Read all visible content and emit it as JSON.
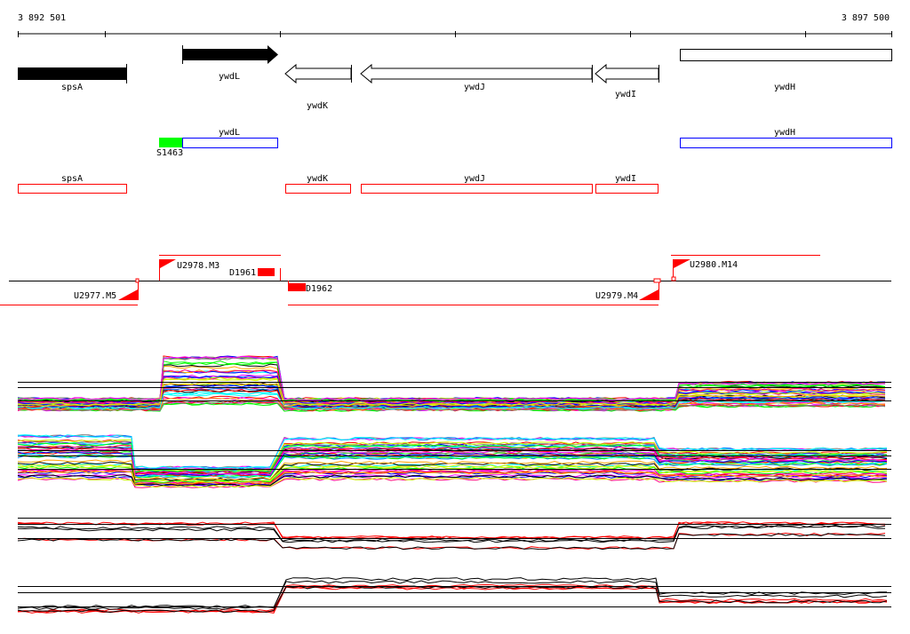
{
  "ruler": {
    "start": "3 892 501",
    "end": "3 897 500"
  },
  "genes": [
    {
      "name": "spsA",
      "strand": "+",
      "filled": true
    },
    {
      "name": "ywdL",
      "strand": "+",
      "filled": true
    },
    {
      "name": "ywdK",
      "strand": "-",
      "filled": false
    },
    {
      "name": "ywdJ",
      "strand": "-",
      "filled": false
    },
    {
      "name": "ywdI",
      "strand": "-",
      "filled": false
    },
    {
      "name": "ywdH",
      "strand": "?",
      "filled": false
    }
  ],
  "blue_track": {
    "items": [
      "ywdL",
      "ywdH"
    ],
    "green_feature": "S1463"
  },
  "red_track": {
    "items": [
      "spsA",
      "ywdK",
      "ywdJ",
      "ywdI"
    ]
  },
  "transcription": {
    "promoters": [
      "U2977.M5",
      "U2978.M3",
      "U2979.M4",
      "U2980.M14"
    ],
    "terminators": [
      "D1961",
      "D1962"
    ]
  },
  "colors": {
    "red": "#ff0000",
    "blue": "#0000ff",
    "green": "#00ff00",
    "black": "#000000"
  }
}
